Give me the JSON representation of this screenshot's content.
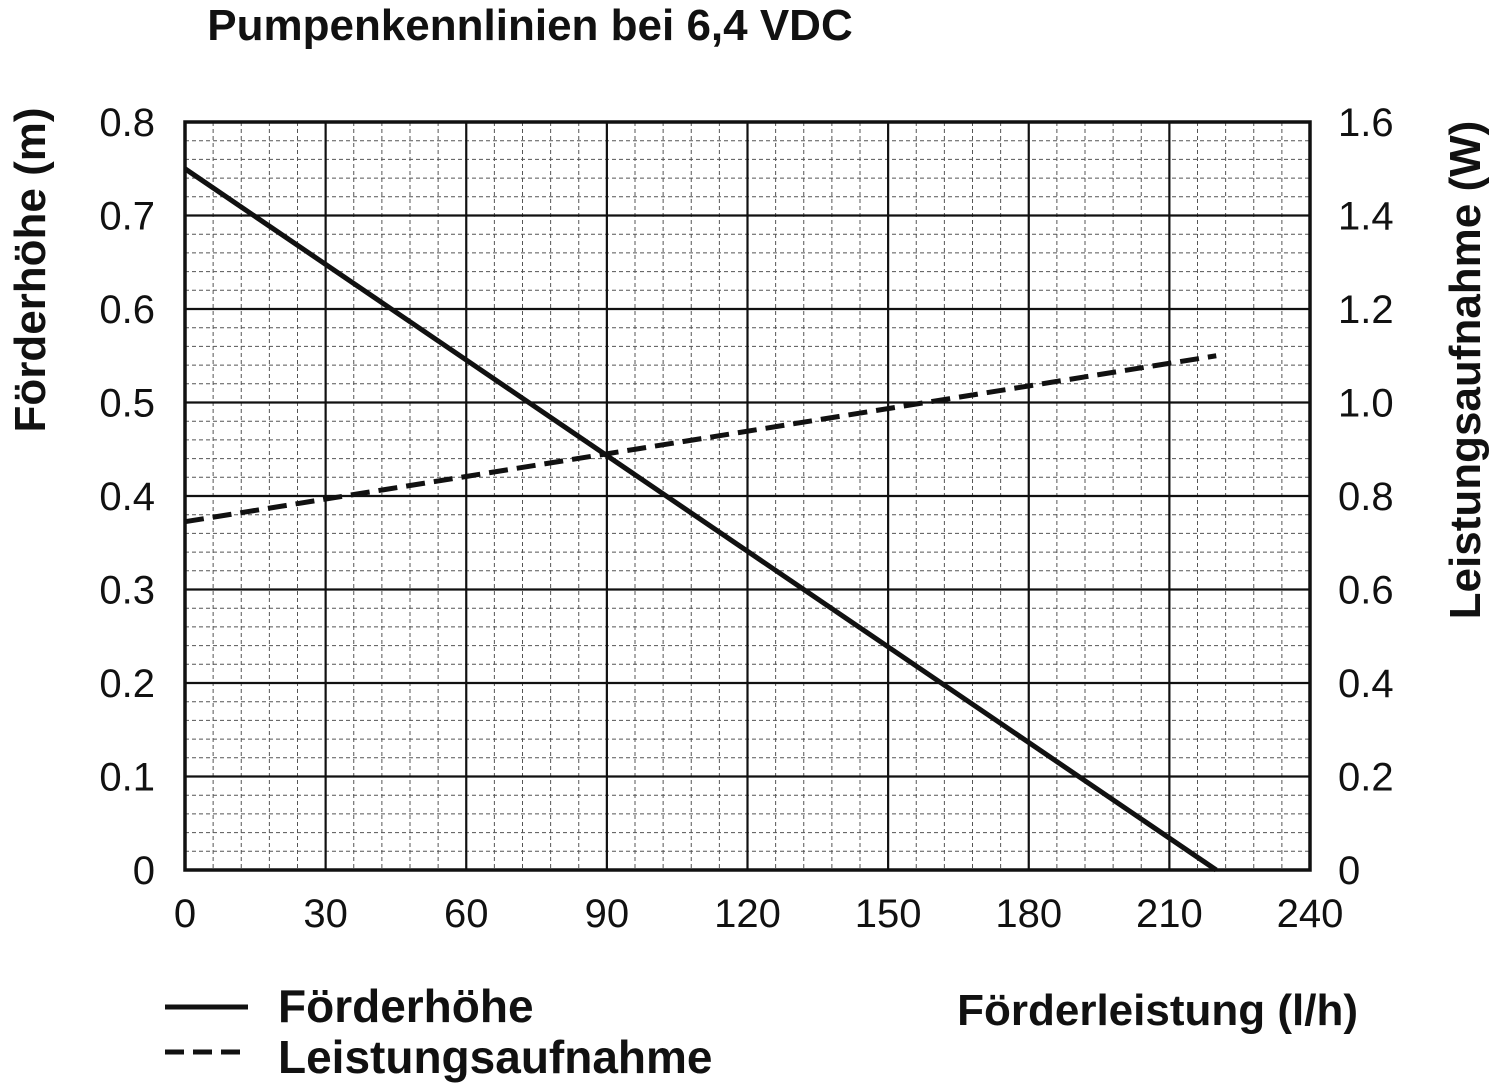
{
  "chart_data": {
    "type": "line",
    "title": "Pumpenkennlinien bei 6,4 VDC",
    "xlabel": "Förderleistung (l/h)",
    "ylabel_left": "Förderhöhe (m)",
    "ylabel_right": "Leistungsaufnahme (W)",
    "xlim": [
      0,
      240
    ],
    "ylim_left": [
      0,
      0.8
    ],
    "ylim_right": [
      0,
      1.6
    ],
    "x_ticks": [
      "0",
      "30",
      "60",
      "90",
      "120",
      "150",
      "180",
      "210",
      "240"
    ],
    "y_left_ticks": [
      "0",
      "0.1",
      "0.2",
      "0.3",
      "0.4",
      "0.5",
      "0.6",
      "0.7",
      "0.8"
    ],
    "y_right_ticks": [
      "0",
      "0.2",
      "0.4",
      "0.6",
      "0.8",
      "1.0",
      "1.2",
      "1.4",
      "1.6"
    ],
    "grid": true,
    "legend_position": "bottom-left",
    "series": [
      {
        "name": "Förderhöhe",
        "axis": "left",
        "style": "solid",
        "color": "#111111",
        "x": [
          0,
          220
        ],
        "y": [
          0.75,
          0.0
        ]
      },
      {
        "name": "Leistungsaufnahme",
        "axis": "right",
        "style": "dashed",
        "color": "#111111",
        "x": [
          0,
          220
        ],
        "y": [
          0.745,
          1.1
        ]
      }
    ]
  }
}
